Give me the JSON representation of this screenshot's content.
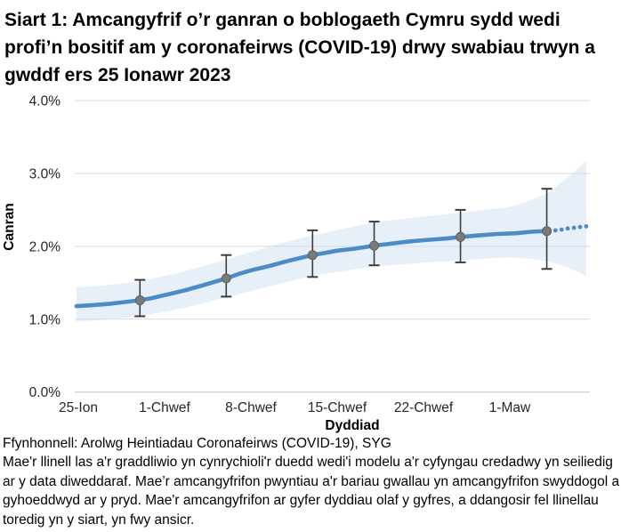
{
  "page": {
    "title": "Siart 1: Amcangyfrif o’r ganran o boblogaeth Cymru sydd wedi profi’n bositif am y coronafeirws (COVID-19) drwy swabiau trwyn a gwddf ers 25 Ionawr 2023"
  },
  "footer": {
    "source": "Ffynhonnell: Arolwg Heintiadau Coronafeirws (COVID-19), SYG",
    "note": "Mae'r llinell las a'r graddliwio yn cynrychioli'r duedd wedi'i modelu a'r cyfyngau credadwy yn seiliedig ar y data diweddaraf. Mae’r amcangyfrifon pwyntiau a'r bariau gwallau yn amcangyfrifon swyddogol a gyhoeddwyd ar y pryd. Mae'r amcangyfrifon ar gyfer dyddiau olaf y gyfres, a ddangosir fel llinellau toredig yn y siart, yn fwy ansicr."
  },
  "chart_data": {
    "type": "line",
    "title": "Siart 1: Amcangyfrif o’r ganran o boblogaeth Cymru sydd wedi profi’n bositif am y coronafeirws (COVID-19) drwy swabiau trwyn a gwddf ers 25 Ionawr 2023",
    "xlabel": "Dyddiad",
    "ylabel": "Canran",
    "grid": true,
    "legend": "none",
    "ylim": [
      0,
      4
    ],
    "xlim_days": [
      -0.2,
      41.5
    ],
    "x_axis_unit": "days after first tick (25-Ion)",
    "colors": {
      "trend": "#4a8bc8",
      "band": "#cfe0f4",
      "point": "#7a7a7a",
      "error_bar": "#3d3d3d",
      "gridline": "#d9d9d9",
      "axis_line": "#c6c6c6",
      "tick_text": "#262626"
    },
    "xticks": [
      {
        "day": 0,
        "label": "25-Ion"
      },
      {
        "day": 7,
        "label": "1-Chwef"
      },
      {
        "day": 14,
        "label": "8-Chwef"
      },
      {
        "day": 21,
        "label": "15-Chwef"
      },
      {
        "day": 28,
        "label": "22-Chwef"
      },
      {
        "day": 35,
        "label": "1-Maw"
      }
    ],
    "yticks": [
      {
        "value": 0,
        "label": "0.0%"
      },
      {
        "value": 1,
        "label": "1.0%"
      },
      {
        "value": 2,
        "label": "2.0%"
      },
      {
        "value": 3,
        "label": "3.0%"
      },
      {
        "value": 4,
        "label": "4.0%"
      }
    ],
    "trend": [
      {
        "day": -0.15,
        "value": 1.18
      },
      {
        "day": 1,
        "value": 1.19
      },
      {
        "day": 2.5,
        "value": 1.21
      },
      {
        "day": 4,
        "value": 1.24
      },
      {
        "day": 5,
        "value": 1.26
      },
      {
        "day": 6,
        "value": 1.29
      },
      {
        "day": 7,
        "value": 1.33
      },
      {
        "day": 8.5,
        "value": 1.39
      },
      {
        "day": 10,
        "value": 1.46
      },
      {
        "day": 11,
        "value": 1.51
      },
      {
        "day": 12,
        "value": 1.56
      },
      {
        "day": 13,
        "value": 1.62
      },
      {
        "day": 14,
        "value": 1.67
      },
      {
        "day": 15.5,
        "value": 1.73
      },
      {
        "day": 17,
        "value": 1.8
      },
      {
        "day": 18,
        "value": 1.84
      },
      {
        "day": 19,
        "value": 1.88
      },
      {
        "day": 20,
        "value": 1.91
      },
      {
        "day": 21,
        "value": 1.94
      },
      {
        "day": 22.5,
        "value": 1.97
      },
      {
        "day": 24,
        "value": 2.01
      },
      {
        "day": 25.5,
        "value": 2.04
      },
      {
        "day": 27,
        "value": 2.07
      },
      {
        "day": 28.5,
        "value": 2.09
      },
      {
        "day": 30,
        "value": 2.11
      },
      {
        "day": 31,
        "value": 2.13
      },
      {
        "day": 32.5,
        "value": 2.15
      },
      {
        "day": 34,
        "value": 2.17
      },
      {
        "day": 35.5,
        "value": 2.18
      },
      {
        "day": 36.75,
        "value": 2.2
      },
      {
        "day": 38,
        "value": 2.21
      }
    ],
    "trend_dotted": [
      {
        "day": 38.7,
        "value": 2.22
      },
      {
        "day": 39.2,
        "value": 2.23
      },
      {
        "day": 39.7,
        "value": 2.245
      },
      {
        "day": 40.2,
        "value": 2.255
      },
      {
        "day": 40.7,
        "value": 2.265
      },
      {
        "day": 41.2,
        "value": 2.275
      }
    ],
    "band": [
      {
        "day": -0.15,
        "lower": 0.97,
        "upper": 1.44
      },
      {
        "day": 2,
        "lower": 0.99,
        "upper": 1.46
      },
      {
        "day": 5,
        "lower": 1.04,
        "upper": 1.52
      },
      {
        "day": 8.5,
        "lower": 1.15,
        "upper": 1.65
      },
      {
        "day": 12,
        "lower": 1.3,
        "upper": 1.82
      },
      {
        "day": 15.5,
        "lower": 1.45,
        "upper": 2.0
      },
      {
        "day": 19,
        "lower": 1.6,
        "upper": 2.15
      },
      {
        "day": 21.5,
        "lower": 1.66,
        "upper": 2.24
      },
      {
        "day": 24,
        "lower": 1.72,
        "upper": 2.33
      },
      {
        "day": 27.5,
        "lower": 1.77,
        "upper": 2.4
      },
      {
        "day": 31,
        "lower": 1.81,
        "upper": 2.46
      },
      {
        "day": 33,
        "lower": 1.83,
        "upper": 2.5
      },
      {
        "day": 35,
        "lower": 1.85,
        "upper": 2.54
      },
      {
        "day": 36.5,
        "lower": 1.83,
        "upper": 2.62
      },
      {
        "day": 38,
        "lower": 1.8,
        "upper": 2.72
      },
      {
        "day": 39.5,
        "lower": 1.72,
        "upper": 2.92
      },
      {
        "day": 40.4,
        "lower": 1.66,
        "upper": 3.05
      },
      {
        "day": 41.2,
        "lower": 1.59,
        "upper": 3.18
      }
    ],
    "point_estimates": [
      {
        "day": 5,
        "value": 1.26,
        "lower": 1.04,
        "upper": 1.54
      },
      {
        "day": 12,
        "value": 1.56,
        "lower": 1.31,
        "upper": 1.88
      },
      {
        "day": 19,
        "value": 1.88,
        "lower": 1.58,
        "upper": 2.22
      },
      {
        "day": 24,
        "value": 2.01,
        "lower": 1.74,
        "upper": 2.34
      },
      {
        "day": 31,
        "value": 2.13,
        "lower": 1.78,
        "upper": 2.5
      },
      {
        "day": 38,
        "value": 2.21,
        "lower": 1.69,
        "upper": 2.79
      }
    ]
  }
}
